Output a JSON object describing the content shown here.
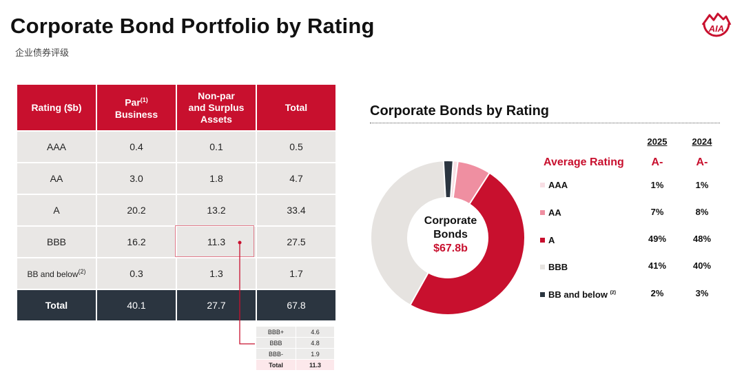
{
  "header": {
    "title": "Corporate Bond Portfolio by Rating",
    "subtitle": "企业债券评级"
  },
  "table": {
    "headers": {
      "rating": "Rating ($b)",
      "par": "Par",
      "par_sup": "(1)",
      "par2": "Business",
      "nonpar_1": "Non-par",
      "nonpar_2": "and Surplus",
      "nonpar_3": "Assets",
      "total": "Total"
    },
    "rows": [
      {
        "rating": "AAA",
        "sup": "",
        "par": "0.4",
        "nonpar": "0.1",
        "total": "0.5"
      },
      {
        "rating": "AA",
        "sup": "",
        "par": "3.0",
        "nonpar": "1.8",
        "total": "4.7"
      },
      {
        "rating": "A",
        "sup": "",
        "par": "20.2",
        "nonpar": "13.2",
        "total": "33.4"
      },
      {
        "rating": "BBB",
        "sup": "",
        "par": "16.2",
        "nonpar": "11.3",
        "total": "27.5"
      },
      {
        "rating": "BB and below",
        "sup": "(2)",
        "par": "0.3",
        "nonpar": "1.3",
        "total": "1.7"
      }
    ],
    "total_row": {
      "rating": "Total",
      "par": "40.1",
      "nonpar": "27.7",
      "total": "67.8"
    }
  },
  "bbb_breakdown": [
    {
      "label": "BBB+",
      "value": "4.6"
    },
    {
      "label": "BBB",
      "value": "4.8"
    },
    {
      "label": "BBB-",
      "value": "1.9"
    },
    {
      "label": "Total",
      "value": "11.3"
    }
  ],
  "chart_data": {
    "type": "pie",
    "title": "Corporate Bonds by Rating",
    "center_label": "Corporate Bonds",
    "center_label_1": "Corporate",
    "center_label_2": "Bonds",
    "center_value": "$67.8b",
    "categories": [
      "AAA",
      "AA",
      "A",
      "BBB",
      "BB and below"
    ],
    "values": [
      1,
      7,
      49,
      41,
      2
    ],
    "values_2024": [
      1,
      8,
      48,
      40,
      3
    ],
    "labels_2025": [
      "1%",
      "7%",
      "49%",
      "41%",
      "2%"
    ],
    "labels_2024": [
      "1%",
      "8%",
      "48%",
      "40%",
      "3%"
    ],
    "colors": [
      "#f8dfe4",
      "#ef8fa1",
      "#c8102e",
      "#e6e3e0",
      "#2b3540"
    ],
    "legend_sups": [
      "",
      "",
      "",
      "",
      "(2)"
    ],
    "years": [
      "2025",
      "2024"
    ],
    "average_rating_label": "Average Rating",
    "average_rating": [
      "A-",
      "A-"
    ]
  }
}
